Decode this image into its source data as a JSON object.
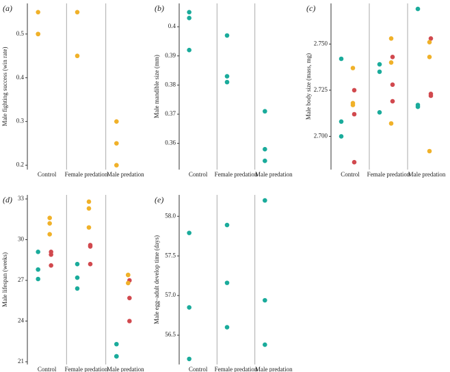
{
  "chart_data": [
    {
      "type": "scatter",
      "tag": "(a)",
      "ylabel": "Male fighting success (win rate)",
      "categories": [
        "Control",
        "Female predation",
        "Male predation"
      ],
      "ylim": [
        0.19,
        0.57
      ],
      "yticks": [
        0.2,
        0.3,
        0.4,
        0.5
      ],
      "series": [
        {
          "color": "#f0b129",
          "x": [
            "Control",
            "Control",
            "Control",
            "Female predation",
            "Female predation",
            "Male predation",
            "Male predation",
            "Male predation"
          ],
          "values": [
            0.55,
            0.5,
            0.5,
            0.55,
            0.45,
            0.3,
            0.25,
            0.2
          ]
        }
      ]
    },
    {
      "type": "scatter",
      "tag": "(b)",
      "ylabel": "Male mandible size (mm)",
      "categories": [
        "Control",
        "Female predation",
        "Male predation"
      ],
      "ylim": [
        0.351,
        0.408
      ],
      "yticks": [
        0.36,
        0.37,
        0.38,
        0.39,
        0.4
      ],
      "series": [
        {
          "color": "#1aab9b",
          "x": [
            "Control",
            "Control",
            "Control",
            "Female predation",
            "Female predation",
            "Female predation",
            "Male predation",
            "Male predation",
            "Male predation"
          ],
          "values": [
            0.405,
            0.403,
            0.392,
            0.397,
            0.383,
            0.381,
            0.371,
            0.358,
            0.354
          ]
        }
      ]
    },
    {
      "type": "scatter",
      "tag": "(c)",
      "ylabel": "Male body size (mass, mg)",
      "categories": [
        "Control",
        "Female predation",
        "Male predation"
      ],
      "ylim": [
        2.682,
        2.772
      ],
      "yticks": [
        {
          "value": 2.7,
          "label": "2.700"
        },
        {
          "value": 2.725,
          "label": "2.725"
        },
        {
          "value": 2.75,
          "label": "2.750"
        }
      ],
      "series": [
        {
          "color": "#1aab9b",
          "x": [
            "Control",
            "Control",
            "Control",
            "Female predation",
            "Female predation",
            "Female predation",
            "Male predation",
            "Male predation",
            "Male predation"
          ],
          "values": [
            2.742,
            2.708,
            2.7,
            2.739,
            2.735,
            2.713,
            2.769,
            2.717,
            2.716
          ]
        },
        {
          "color": "#d1494e",
          "x": [
            "Control",
            "Control",
            "Control",
            "Female predation",
            "Female predation",
            "Female predation",
            "Male predation",
            "Male predation",
            "Male predation"
          ],
          "values": [
            2.725,
            2.712,
            2.686,
            2.743,
            2.728,
            2.719,
            2.753,
            2.723,
            2.722
          ]
        },
        {
          "color": "#f0b129",
          "x": [
            "Control",
            "Control",
            "Control",
            "Female predation",
            "Female predation",
            "Female predation",
            "Male predation",
            "Male predation",
            "Male predation"
          ],
          "values": [
            2.737,
            2.718,
            2.717,
            2.753,
            2.74,
            2.707,
            2.751,
            2.743,
            2.692
          ]
        }
      ]
    },
    {
      "type": "scatter",
      "tag": "(d)",
      "ylabel": "Male lifespan (weeks)",
      "categories": [
        "Control",
        "Female predation",
        "Male predation"
      ],
      "ylim": [
        20.8,
        33.3
      ],
      "yticks": [
        21,
        24,
        27,
        30,
        33
      ],
      "series": [
        {
          "color": "#1aab9b",
          "x": [
            "Control",
            "Control",
            "Control",
            "Female predation",
            "Female predation",
            "Female predation",
            "Male predation",
            "Male predation",
            "Male predation"
          ],
          "values": [
            29.1,
            27.8,
            27.1,
            28.2,
            27.2,
            26.4,
            22.3,
            21.4,
            21.4
          ]
        },
        {
          "color": "#d1494e",
          "x": [
            "Control",
            "Control",
            "Control",
            "Female predation",
            "Female predation",
            "Female predation",
            "Male predation",
            "Male predation",
            "Male predation"
          ],
          "values": [
            29.1,
            28.9,
            28.1,
            29.6,
            29.5,
            28.2,
            27.0,
            25.7,
            24.0
          ]
        },
        {
          "color": "#f0b129",
          "x": [
            "Control",
            "Control",
            "Control",
            "Female predation",
            "Female predation",
            "Female predation",
            "Male predation",
            "Male predation",
            "Male predation"
          ],
          "values": [
            31.6,
            31.2,
            30.4,
            32.8,
            32.3,
            30.9,
            27.4,
            27.4,
            26.8
          ]
        }
      ]
    },
    {
      "type": "scatter",
      "tag": "(e)",
      "ylabel": "Male egg–adult develop time (days)",
      "categories": [
        "Control",
        "Female predation",
        "Male predation"
      ],
      "ylim": [
        56.13,
        58.27
      ],
      "yticks": [
        56.5,
        {
          "value": 57,
          "label": "57.0"
        },
        57.5,
        {
          "value": 58,
          "label": "58.0"
        }
      ],
      "series": [
        {
          "color": "#1aab9b",
          "x": [
            "Control",
            "Control",
            "Control",
            "Female predation",
            "Female predation",
            "Female predation",
            "Male predation",
            "Male predation",
            "Male predation"
          ],
          "values": [
            57.79,
            56.85,
            56.2,
            57.89,
            57.16,
            56.6,
            58.2,
            56.94,
            56.38
          ]
        }
      ]
    }
  ]
}
